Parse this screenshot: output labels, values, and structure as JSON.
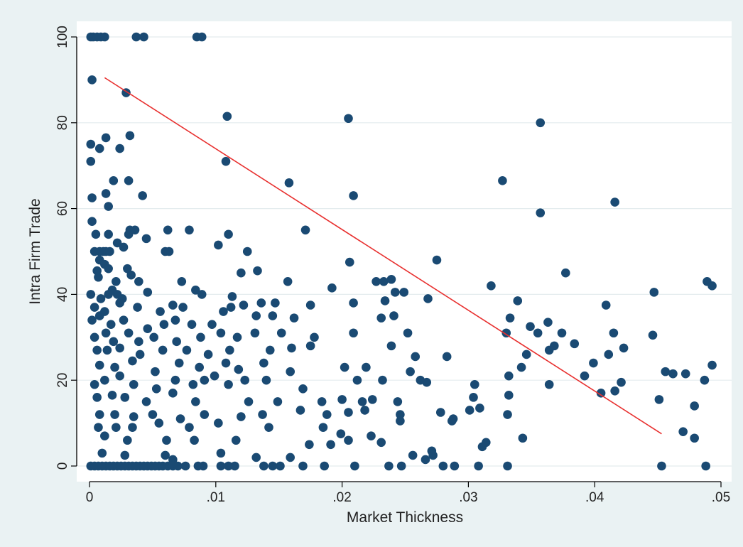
{
  "chart_data": {
    "type": "scatter",
    "title": "",
    "xlabel": "Market Thickness",
    "ylabel": "Intra Firm Trade",
    "xlim": [
      0,
      0.05
    ],
    "ylim": [
      0,
      100
    ],
    "xticks": [
      0,
      0.01,
      0.02,
      0.03,
      0.04,
      0.05
    ],
    "xtick_labels": [
      "0",
      ".01",
      ".02",
      ".03",
      ".04",
      ".05"
    ],
    "yticks": [
      0,
      20,
      40,
      60,
      80,
      100
    ],
    "ytick_labels": [
      "0",
      "20",
      "40",
      "60",
      "80",
      "100"
    ],
    "grid": "horizontal",
    "legend": "none",
    "colors": {
      "points": "#1a4a73",
      "fit_line": "#e8302f",
      "plot_bg": "#ffffff",
      "outer_bg": "#eaf2f3",
      "grid": "#e4ecee"
    },
    "fit_line": [
      [
        0.0012,
        90.5
      ],
      [
        0.0453,
        7.5
      ]
    ],
    "points": [
      [
        0.0001,
        100
      ],
      [
        0.0003,
        100
      ],
      [
        0.0006,
        100
      ],
      [
        0.0009,
        100
      ],
      [
        0.0012,
        100
      ],
      [
        0.0037,
        100
      ],
      [
        0.0043,
        100
      ],
      [
        0.0085,
        100
      ],
      [
        0.0089,
        100
      ],
      [
        0.0002,
        90
      ],
      [
        0.0029,
        87
      ],
      [
        0.0109,
        81.5
      ],
      [
        0.0205,
        81
      ],
      [
        0.0357,
        80
      ],
      [
        0.0013,
        76.5
      ],
      [
        0.0032,
        77
      ],
      [
        0.0001,
        75
      ],
      [
        0.0008,
        74
      ],
      [
        0.0024,
        74
      ],
      [
        0.0001,
        71
      ],
      [
        0.0108,
        71
      ],
      [
        0.0019,
        66.5
      ],
      [
        0.0031,
        66.5
      ],
      [
        0.0158,
        66
      ],
      [
        0.0327,
        66.5
      ],
      [
        0.0002,
        62.5
      ],
      [
        0.0013,
        63.5
      ],
      [
        0.0042,
        63
      ],
      [
        0.0209,
        63
      ],
      [
        0.0416,
        61.5
      ],
      [
        0.0015,
        60.5
      ],
      [
        0.0357,
        59
      ],
      [
        0.0002,
        57
      ],
      [
        0.0032,
        55
      ],
      [
        0.0036,
        55
      ],
      [
        0.0062,
        55
      ],
      [
        0.0079,
        55
      ],
      [
        0.0171,
        55
      ],
      [
        0.0005,
        54
      ],
      [
        0.0015,
        54
      ],
      [
        0.0031,
        54
      ],
      [
        0.011,
        54
      ],
      [
        0.0022,
        52
      ],
      [
        0.0027,
        51
      ],
      [
        0.0045,
        53
      ],
      [
        0.0102,
        51.5
      ],
      [
        0.0004,
        50
      ],
      [
        0.0008,
        50
      ],
      [
        0.0011,
        50
      ],
      [
        0.0013,
        50
      ],
      [
        0.0016,
        50
      ],
      [
        0.006,
        50
      ],
      [
        0.0063,
        50
      ],
      [
        0.0125,
        50
      ],
      [
        0.0008,
        48
      ],
      [
        0.0012,
        47
      ],
      [
        0.0015,
        46
      ],
      [
        0.0006,
        45.5
      ],
      [
        0.003,
        46
      ],
      [
        0.0033,
        44.5
      ],
      [
        0.012,
        45
      ],
      [
        0.0133,
        45.5
      ],
      [
        0.0206,
        47.5
      ],
      [
        0.0275,
        48
      ],
      [
        0.0377,
        45
      ],
      [
        0.0007,
        44
      ],
      [
        0.0021,
        43
      ],
      [
        0.0039,
        43
      ],
      [
        0.0073,
        43
      ],
      [
        0.0157,
        43
      ],
      [
        0.0227,
        43
      ],
      [
        0.0233,
        43
      ],
      [
        0.0239,
        43.5
      ],
      [
        0.0249,
        40.5
      ],
      [
        0.0318,
        42
      ],
      [
        0.0493,
        42
      ],
      [
        0.0489,
        43
      ],
      [
        0.0001,
        40
      ],
      [
        0.0009,
        39
      ],
      [
        0.0015,
        40
      ],
      [
        0.0018,
        41
      ],
      [
        0.0022,
        40
      ],
      [
        0.0026,
        39
      ],
      [
        0.0046,
        40.5
      ],
      [
        0.0084,
        41
      ],
      [
        0.0089,
        40
      ],
      [
        0.0113,
        39.5
      ],
      [
        0.0192,
        41.5
      ],
      [
        0.0242,
        40.5
      ],
      [
        0.0447,
        40.5
      ],
      [
        0.0004,
        37
      ],
      [
        0.0012,
        36
      ],
      [
        0.0024,
        38
      ],
      [
        0.0038,
        37
      ],
      [
        0.0056,
        36
      ],
      [
        0.0066,
        37.5
      ],
      [
        0.0074,
        37
      ],
      [
        0.0106,
        36
      ],
      [
        0.0112,
        37
      ],
      [
        0.0122,
        37.5
      ],
      [
        0.0136,
        38
      ],
      [
        0.0147,
        38
      ],
      [
        0.0175,
        37.5
      ],
      [
        0.0209,
        38
      ],
      [
        0.0234,
        38.5
      ],
      [
        0.0268,
        39
      ],
      [
        0.0339,
        38.5
      ],
      [
        0.0409,
        37.5
      ],
      [
        0.0002,
        34
      ],
      [
        0.0008,
        35
      ],
      [
        0.0017,
        33
      ],
      [
        0.0027,
        34
      ],
      [
        0.0046,
        32
      ],
      [
        0.0059,
        33
      ],
      [
        0.0068,
        34
      ],
      [
        0.0081,
        33
      ],
      [
        0.0097,
        33
      ],
      [
        0.0132,
        35
      ],
      [
        0.0145,
        35
      ],
      [
        0.0162,
        34.5
      ],
      [
        0.0241,
        35
      ],
      [
        0.0231,
        34.5
      ],
      [
        0.0333,
        34.5
      ],
      [
        0.0349,
        32.5
      ],
      [
        0.0363,
        33.5
      ],
      [
        0.0004,
        30
      ],
      [
        0.0013,
        31
      ],
      [
        0.0019,
        29
      ],
      [
        0.0031,
        31
      ],
      [
        0.0039,
        29
      ],
      [
        0.0051,
        30
      ],
      [
        0.0069,
        29
      ],
      [
        0.0088,
        30
      ],
      [
        0.0104,
        31
      ],
      [
        0.0117,
        30
      ],
      [
        0.0131,
        31
      ],
      [
        0.0152,
        31
      ],
      [
        0.0178,
        30
      ],
      [
        0.0209,
        31
      ],
      [
        0.0252,
        31
      ],
      [
        0.033,
        31
      ],
      [
        0.0355,
        31
      ],
      [
        0.0374,
        31
      ],
      [
        0.0415,
        31
      ],
      [
        0.0446,
        30.5
      ],
      [
        0.0006,
        27
      ],
      [
        0.0014,
        27
      ],
      [
        0.0024,
        27.5
      ],
      [
        0.004,
        26
      ],
      [
        0.0058,
        27
      ],
      [
        0.0077,
        27
      ],
      [
        0.0094,
        26
      ],
      [
        0.0111,
        27
      ],
      [
        0.0143,
        27
      ],
      [
        0.016,
        27.5
      ],
      [
        0.0175,
        28
      ],
      [
        0.0239,
        28
      ],
      [
        0.0364,
        27
      ],
      [
        0.0368,
        28
      ],
      [
        0.0384,
        28.5
      ],
      [
        0.0423,
        27.5
      ],
      [
        0.0411,
        26
      ],
      [
        0.0008,
        23.5
      ],
      [
        0.002,
        23
      ],
      [
        0.0034,
        24.5
      ],
      [
        0.0052,
        22
      ],
      [
        0.0071,
        24
      ],
      [
        0.0087,
        23
      ],
      [
        0.0108,
        24
      ],
      [
        0.0118,
        22.5
      ],
      [
        0.0138,
        24
      ],
      [
        0.0159,
        22
      ],
      [
        0.0202,
        23
      ],
      [
        0.0219,
        23
      ],
      [
        0.0254,
        22
      ],
      [
        0.0258,
        25.5
      ],
      [
        0.0283,
        25.5
      ],
      [
        0.0346,
        26
      ],
      [
        0.0342,
        23
      ],
      [
        0.0399,
        24
      ],
      [
        0.0456,
        22
      ],
      [
        0.0493,
        23.5
      ],
      [
        0.0004,
        19
      ],
      [
        0.0012,
        20
      ],
      [
        0.0024,
        21
      ],
      [
        0.0035,
        19
      ],
      [
        0.0053,
        18
      ],
      [
        0.0068,
        20
      ],
      [
        0.0082,
        19
      ],
      [
        0.0091,
        20
      ],
      [
        0.0099,
        21
      ],
      [
        0.011,
        19
      ],
      [
        0.0123,
        20
      ],
      [
        0.014,
        20
      ],
      [
        0.0169,
        18
      ],
      [
        0.0212,
        20
      ],
      [
        0.0232,
        20
      ],
      [
        0.0262,
        20
      ],
      [
        0.0267,
        19.5
      ],
      [
        0.0305,
        19
      ],
      [
        0.0332,
        21
      ],
      [
        0.0364,
        19
      ],
      [
        0.0392,
        21
      ],
      [
        0.0416,
        17.5
      ],
      [
        0.0421,
        19.5
      ],
      [
        0.0462,
        21.5
      ],
      [
        0.0472,
        21.5
      ],
      [
        0.0487,
        20
      ],
      [
        0.0006,
        16
      ],
      [
        0.0018,
        16.5
      ],
      [
        0.0028,
        16
      ],
      [
        0.0045,
        15
      ],
      [
        0.0066,
        17
      ],
      [
        0.0084,
        15
      ],
      [
        0.0126,
        15
      ],
      [
        0.0149,
        15
      ],
      [
        0.0184,
        15
      ],
      [
        0.02,
        15.5
      ],
      [
        0.0216,
        15
      ],
      [
        0.0224,
        15.5
      ],
      [
        0.0244,
        15
      ],
      [
        0.0304,
        16
      ],
      [
        0.0332,
        16.5
      ],
      [
        0.0405,
        17
      ],
      [
        0.0451,
        15.5
      ],
      [
        0.0479,
        14
      ],
      [
        0.0008,
        12
      ],
      [
        0.002,
        12
      ],
      [
        0.0035,
        11.5
      ],
      [
        0.005,
        12
      ],
      [
        0.0072,
        11
      ],
      [
        0.0091,
        12
      ],
      [
        0.012,
        11.5
      ],
      [
        0.0137,
        12
      ],
      [
        0.0167,
        13
      ],
      [
        0.0188,
        12
      ],
      [
        0.0205,
        12.5
      ],
      [
        0.0218,
        13
      ],
      [
        0.0246,
        12
      ],
      [
        0.0278,
        12.5
      ],
      [
        0.0288,
        11
      ],
      [
        0.0301,
        13
      ],
      [
        0.0309,
        13.5
      ],
      [
        0.0331,
        12
      ],
      [
        0.0007,
        9
      ],
      [
        0.0021,
        9
      ],
      [
        0.0034,
        9
      ],
      [
        0.0055,
        10
      ],
      [
        0.0079,
        9
      ],
      [
        0.0102,
        10
      ],
      [
        0.0142,
        9
      ],
      [
        0.0185,
        9
      ],
      [
        0.0199,
        7.5
      ],
      [
        0.0223,
        7
      ],
      [
        0.0246,
        10.5
      ],
      [
        0.0287,
        10.5
      ],
      [
        0.047,
        8
      ],
      [
        0.0479,
        6.5
      ],
      [
        0.0012,
        7
      ],
      [
        0.003,
        6
      ],
      [
        0.0061,
        6
      ],
      [
        0.0083,
        6
      ],
      [
        0.0116,
        6
      ],
      [
        0.0174,
        5
      ],
      [
        0.0191,
        5
      ],
      [
        0.0205,
        6
      ],
      [
        0.0231,
        5.5
      ],
      [
        0.0311,
        4.5
      ],
      [
        0.0314,
        5.5
      ],
      [
        0.0343,
        6.5
      ],
      [
        0.001,
        3
      ],
      [
        0.0028,
        2.5
      ],
      [
        0.006,
        2.5
      ],
      [
        0.0066,
        1.5
      ],
      [
        0.0104,
        3
      ],
      [
        0.0132,
        2
      ],
      [
        0.0159,
        2
      ],
      [
        0.0256,
        2.5
      ],
      [
        0.0272,
        2.5
      ],
      [
        0.0266,
        1.5
      ],
      [
        0.0271,
        3.5
      ],
      [
        0.0001,
        0
      ],
      [
        0.0004,
        0
      ],
      [
        0.0007,
        0
      ],
      [
        0.001,
        0
      ],
      [
        0.0013,
        0
      ],
      [
        0.0016,
        0
      ],
      [
        0.0019,
        0
      ],
      [
        0.0022,
        0
      ],
      [
        0.0025,
        0
      ],
      [
        0.0028,
        0
      ],
      [
        0.0031,
        0
      ],
      [
        0.0034,
        0
      ],
      [
        0.0037,
        0
      ],
      [
        0.004,
        0
      ],
      [
        0.0043,
        0
      ],
      [
        0.0046,
        0
      ],
      [
        0.0049,
        0
      ],
      [
        0.0052,
        0
      ],
      [
        0.0055,
        0
      ],
      [
        0.0058,
        0
      ],
      [
        0.0062,
        0
      ],
      [
        0.0066,
        0
      ],
      [
        0.007,
        0
      ],
      [
        0.0076,
        0
      ],
      [
        0.0086,
        0
      ],
      [
        0.009,
        0
      ],
      [
        0.0104,
        0
      ],
      [
        0.011,
        0
      ],
      [
        0.0115,
        0
      ],
      [
        0.0138,
        0
      ],
      [
        0.0145,
        0
      ],
      [
        0.0151,
        0
      ],
      [
        0.0169,
        0
      ],
      [
        0.0186,
        0
      ],
      [
        0.021,
        0
      ],
      [
        0.0237,
        0
      ],
      [
        0.0247,
        0
      ],
      [
        0.028,
        0
      ],
      [
        0.0289,
        0
      ],
      [
        0.0308,
        0
      ],
      [
        0.0331,
        0
      ],
      [
        0.0453,
        0
      ],
      [
        0.0488,
        0
      ]
    ]
  }
}
